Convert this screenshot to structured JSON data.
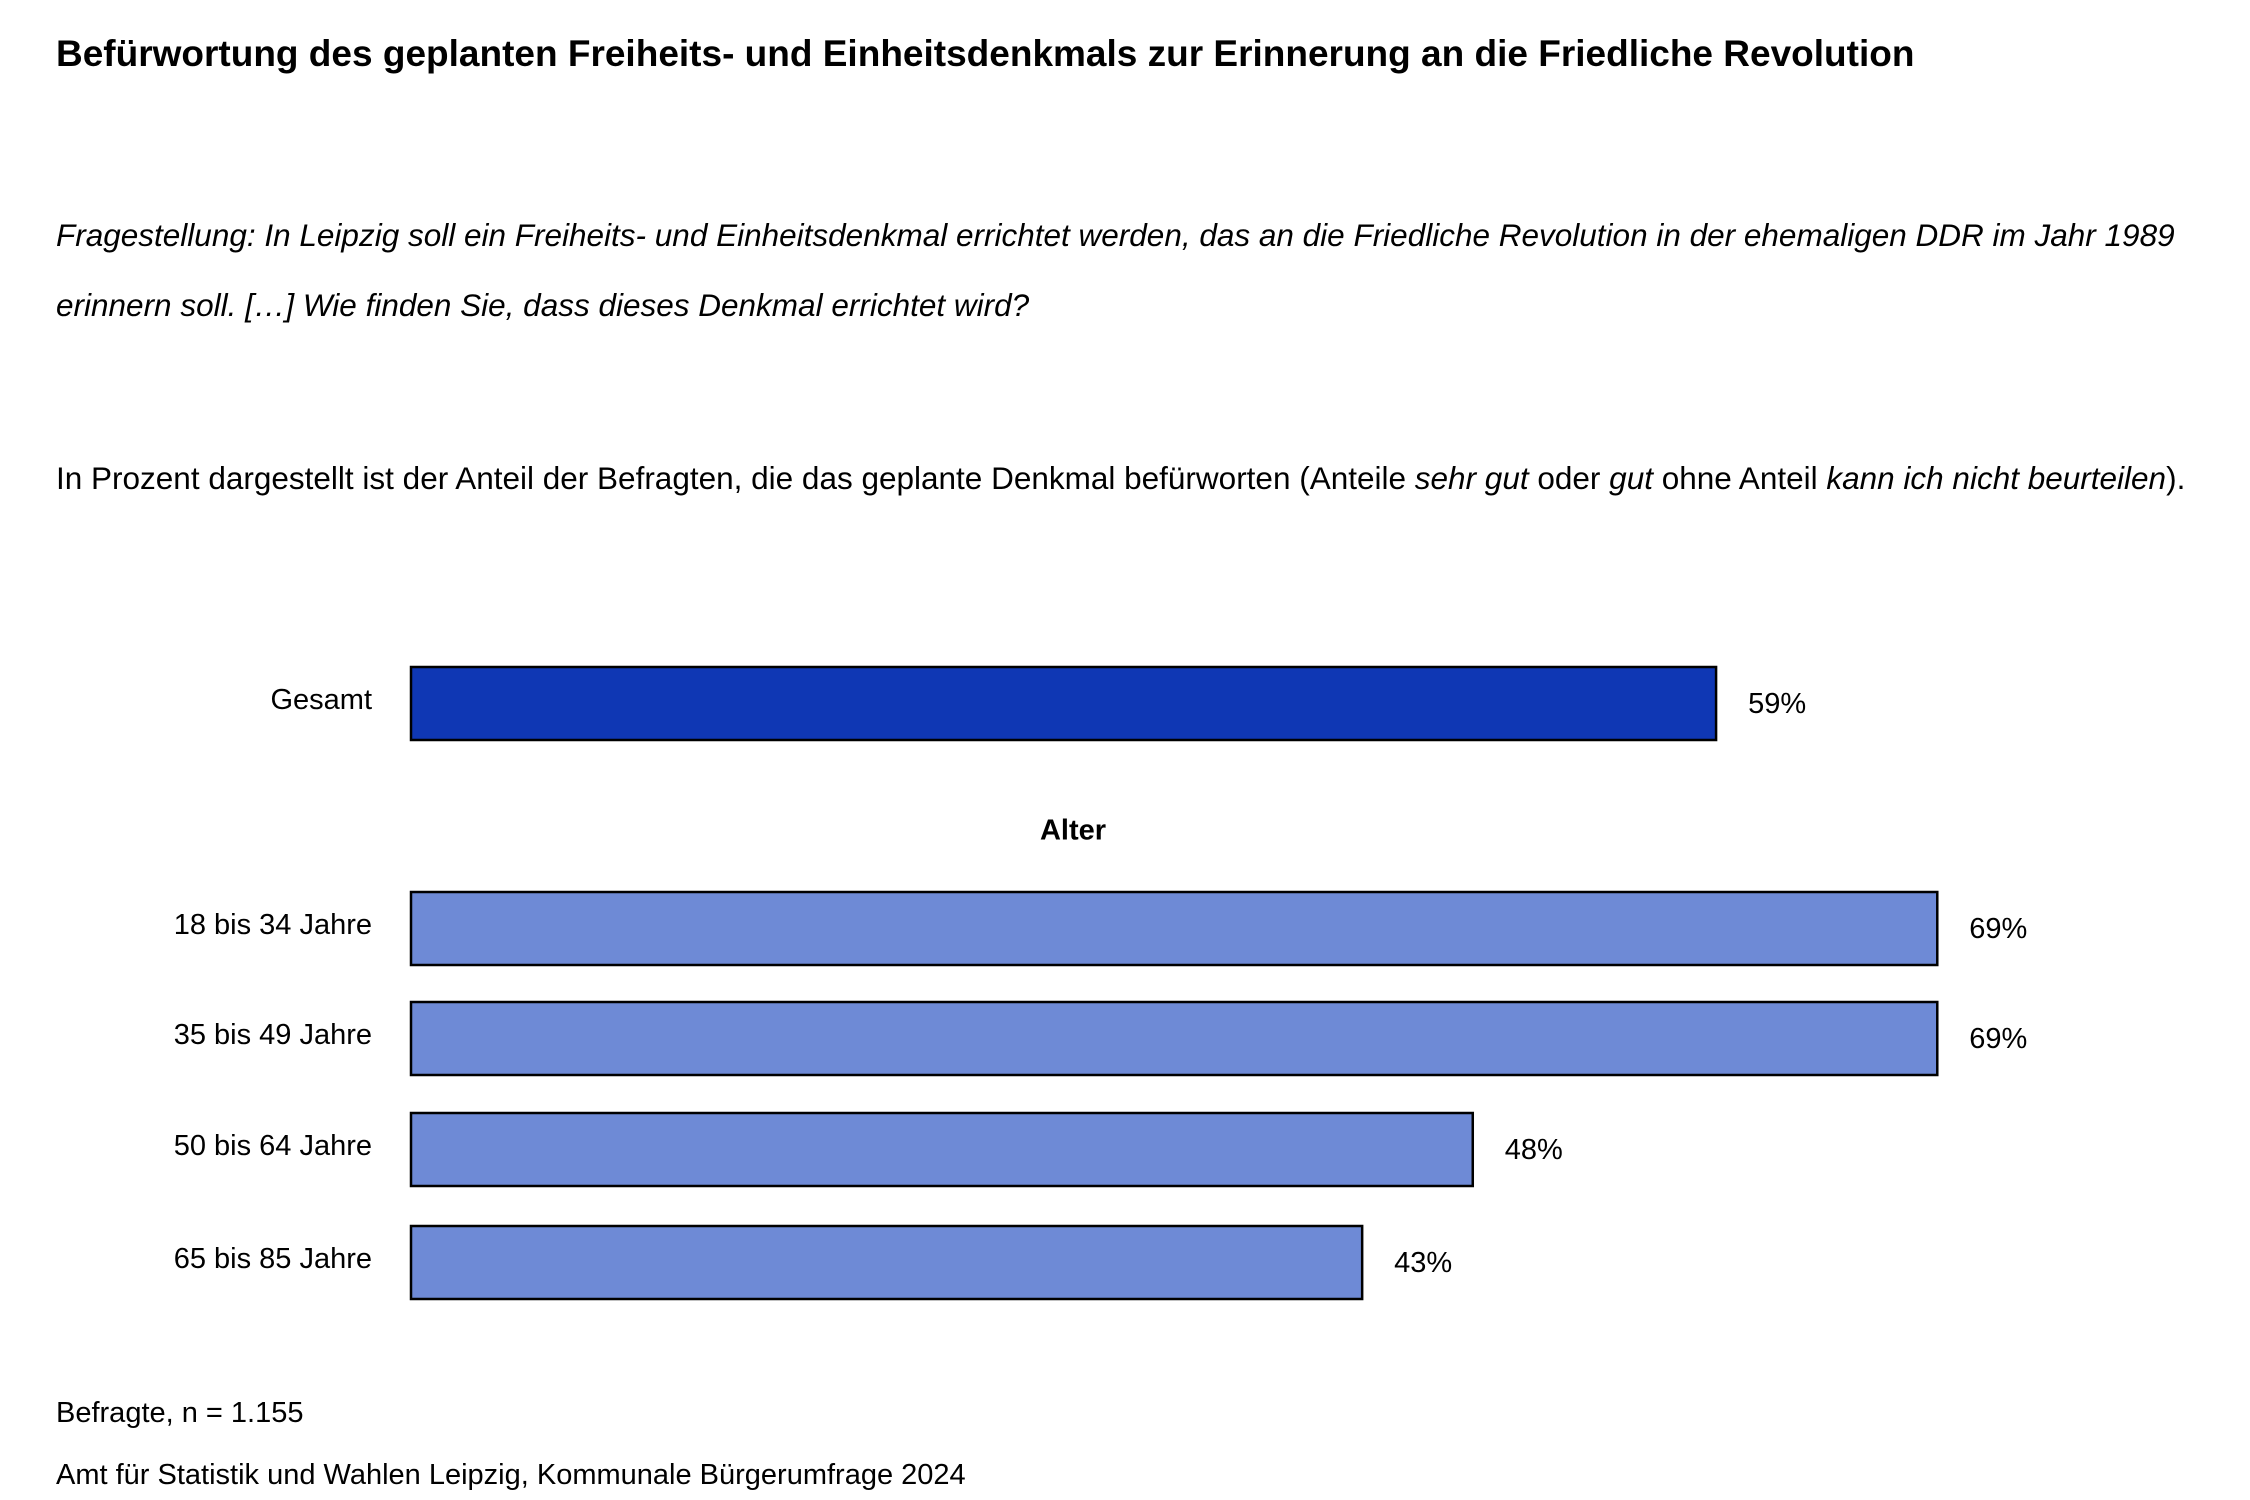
{
  "chart_data": {
    "type": "bar",
    "title": "Befürwortung des geplanten Freiheits- und Einheitsdenkmals zur Erinnerung an die Friedliche Revolution",
    "subtitle": "Fragestellung: In Leipzig soll ein Freiheits- und Einheitsdenkmal errichtet werden, das an die Friedliche Revolution in der ehemaligen DDR im Jahr 1989 erinnern soll. […] Wie finden Sie, dass dieses Denkmal errichtet wird?",
    "note": [
      "In Prozent dargestellt ist der Anteil der Befragten, die das geplante Denkmal befürworten (Anteile ",
      "sehr gut",
      " oder ",
      "gut",
      " ohne Anteil ",
      "kann ich nicht beurteilen",
      ")."
    ],
    "group_label": "Alter",
    "categories": [
      "Gesamt",
      "18 bis 34 Jahre",
      "35 bis 49 Jahre",
      "50 bis 64 Jahre",
      "65 bis 85 Jahre"
    ],
    "values": [
      59,
      69,
      69,
      48,
      43
    ],
    "value_labels": [
      "59%",
      "69%",
      "69%",
      "48%",
      "43%"
    ],
    "colors": [
      "#0f37b4",
      "#6e8ad6",
      "#6e8ad6",
      "#6e8ad6",
      "#6e8ad6"
    ],
    "footnotes": [
      "Befragte, n = 1.155",
      "Amt für Statistik und Wahlen Leipzig, Kommunale Bürgerumfrage 2024"
    ]
  }
}
